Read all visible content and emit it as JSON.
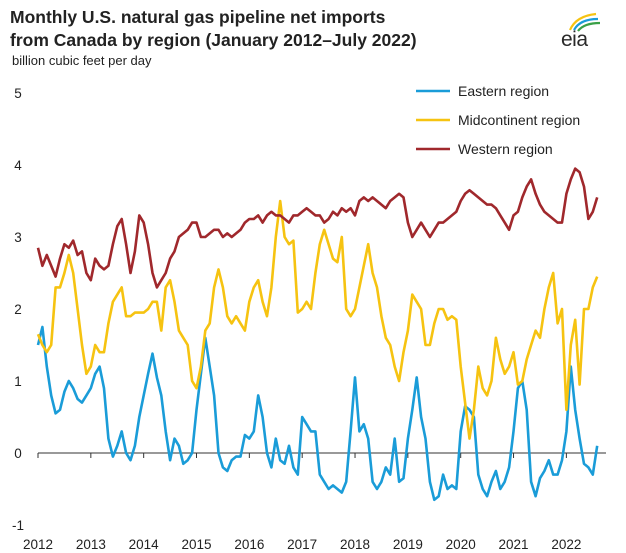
{
  "header": {
    "title_line1": "Monthly U.S. natural gas pipeline net imports",
    "title_line2": "from Canada by region (January 2012–July 2022)",
    "units": "billion cubic feet per day",
    "logo_text": "eia"
  },
  "chart_data": {
    "type": "line",
    "title": "Monthly U.S. natural gas pipeline net imports from Canada by region (January 2012–July 2022)",
    "ylabel": "billion cubic feet per day",
    "xlabel": "",
    "ylim": [
      -1,
      5
    ],
    "xlim": [
      2012,
      2022.75
    ],
    "yticks": [
      -1,
      0,
      1,
      2,
      3,
      4,
      5
    ],
    "xticks": [
      "2012",
      "2013",
      "2014",
      "2015",
      "2016",
      "2017",
      "2018",
      "2019",
      "2020",
      "2021",
      "2022"
    ],
    "legend_position": "top-right",
    "grid": false,
    "x_start": "January 2012",
    "x_step": "monthly",
    "series": [
      {
        "name": "Eastern region",
        "color": "#1a9cd8",
        "values": [
          1.5,
          1.75,
          1.2,
          0.8,
          0.55,
          0.6,
          0.85,
          1.0,
          0.9,
          0.75,
          0.7,
          0.8,
          0.9,
          1.1,
          1.2,
          0.9,
          0.2,
          -0.05,
          0.1,
          0.3,
          0.0,
          -0.1,
          0.1,
          0.5,
          0.8,
          1.1,
          1.38,
          1.05,
          0.8,
          0.3,
          -0.1,
          0.2,
          0.1,
          -0.15,
          -0.1,
          0.0,
          0.6,
          1.1,
          1.6,
          1.2,
          0.8,
          0.0,
          -0.2,
          -0.25,
          -0.1,
          -0.05,
          -0.05,
          0.25,
          0.2,
          0.3,
          0.8,
          0.5,
          0.0,
          -0.2,
          0.2,
          -0.1,
          -0.15,
          0.1,
          -0.2,
          -0.3,
          0.5,
          0.4,
          0.3,
          0.3,
          -0.3,
          -0.4,
          -0.5,
          -0.45,
          -0.5,
          -0.55,
          -0.4,
          0.3,
          1.05,
          0.3,
          0.4,
          0.2,
          -0.4,
          -0.5,
          -0.4,
          -0.2,
          -0.3,
          0.2,
          -0.4,
          -0.35,
          0.2,
          0.6,
          1.05,
          0.5,
          0.2,
          -0.4,
          -0.65,
          -0.6,
          -0.3,
          -0.5,
          -0.45,
          -0.5,
          0.3,
          0.65,
          0.6,
          0.5,
          -0.3,
          -0.5,
          -0.6,
          -0.4,
          -0.25,
          -0.5,
          -0.4,
          -0.2,
          0.3,
          0.9,
          1.0,
          0.6,
          -0.4,
          -0.6,
          -0.35,
          -0.25,
          -0.1,
          -0.3,
          -0.3,
          -0.1,
          0.3,
          1.2,
          0.6,
          0.2,
          -0.15,
          -0.2,
          -0.3,
          0.1
        ]
      },
      {
        "name": "Midcontinent region",
        "color": "#f6c311",
        "values": [
          1.65,
          1.5,
          1.4,
          1.5,
          2.3,
          2.3,
          2.5,
          2.75,
          2.5,
          2.0,
          1.5,
          1.1,
          1.2,
          1.5,
          1.4,
          1.4,
          1.8,
          2.1,
          2.2,
          2.3,
          1.9,
          1.9,
          1.95,
          1.95,
          1.95,
          2.0,
          2.1,
          2.1,
          1.7,
          2.3,
          2.4,
          2.1,
          1.7,
          1.6,
          1.5,
          1.0,
          0.9,
          1.2,
          1.7,
          1.8,
          2.3,
          2.55,
          2.3,
          1.9,
          1.8,
          1.9,
          1.8,
          1.7,
          2.1,
          2.3,
          2.4,
          2.1,
          1.9,
          2.3,
          3.0,
          3.5,
          3.0,
          2.9,
          2.95,
          1.95,
          2.0,
          2.1,
          2.0,
          2.5,
          2.9,
          3.1,
          2.9,
          2.7,
          2.65,
          3.0,
          2.0,
          1.9,
          2.0,
          2.3,
          2.6,
          2.9,
          2.5,
          2.3,
          1.9,
          1.6,
          1.5,
          1.2,
          1.0,
          1.4,
          1.7,
          2.2,
          2.1,
          2.0,
          1.5,
          1.5,
          1.8,
          2.0,
          2.0,
          1.85,
          1.9,
          1.85,
          1.2,
          0.7,
          0.2,
          0.6,
          1.2,
          0.9,
          0.8,
          1.0,
          1.6,
          1.3,
          1.1,
          1.2,
          1.4,
          0.95,
          1.0,
          1.3,
          1.5,
          1.7,
          1.6,
          2.0,
          2.3,
          2.5,
          1.8,
          2.0,
          0.6,
          1.5,
          1.85,
          0.95,
          2.0,
          2.0,
          2.3,
          2.45
        ]
      },
      {
        "name": "Western region",
        "color": "#a0282c",
        "values": [
          2.85,
          2.6,
          2.75,
          2.6,
          2.45,
          2.7,
          2.9,
          2.85,
          2.95,
          2.75,
          2.8,
          2.5,
          2.4,
          2.7,
          2.6,
          2.55,
          2.6,
          2.9,
          3.15,
          3.25,
          2.9,
          2.5,
          2.8,
          3.3,
          3.2,
          2.9,
          2.5,
          2.3,
          2.4,
          2.5,
          2.7,
          2.8,
          3.0,
          3.05,
          3.1,
          3.2,
          3.2,
          3.0,
          3.0,
          3.05,
          3.1,
          3.1,
          3.0,
          3.05,
          3.0,
          3.05,
          3.1,
          3.2,
          3.25,
          3.25,
          3.3,
          3.2,
          3.3,
          3.35,
          3.3,
          3.3,
          3.25,
          3.2,
          3.3,
          3.3,
          3.35,
          3.4,
          3.35,
          3.3,
          3.3,
          3.2,
          3.25,
          3.35,
          3.3,
          3.4,
          3.35,
          3.4,
          3.3,
          3.5,
          3.55,
          3.5,
          3.55,
          3.5,
          3.45,
          3.4,
          3.5,
          3.55,
          3.6,
          3.55,
          3.2,
          3.0,
          3.1,
          3.2,
          3.1,
          3.0,
          3.1,
          3.2,
          3.2,
          3.25,
          3.3,
          3.35,
          3.5,
          3.6,
          3.65,
          3.6,
          3.55,
          3.5,
          3.45,
          3.45,
          3.4,
          3.3,
          3.2,
          3.1,
          3.3,
          3.35,
          3.55,
          3.7,
          3.8,
          3.6,
          3.45,
          3.35,
          3.3,
          3.25,
          3.2,
          3.2,
          3.6,
          3.8,
          3.95,
          3.9,
          3.7,
          3.25,
          3.35,
          3.55
        ]
      }
    ]
  }
}
